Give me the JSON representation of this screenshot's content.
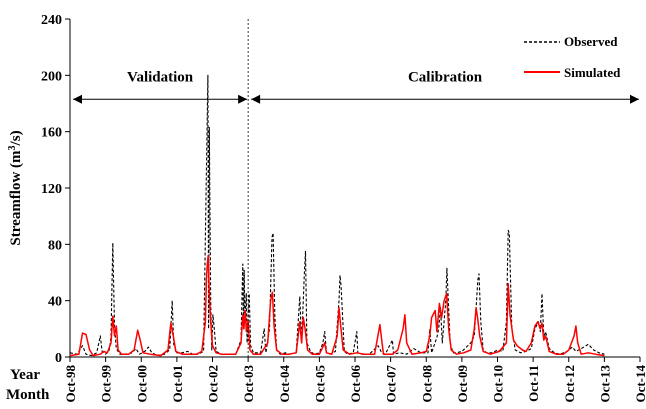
{
  "chart_data": {
    "type": "line",
    "ylabel_main": "Streamflow (m",
    "ylabel_sup": "3",
    "ylabel_tail": "/s)",
    "x_row_labels": [
      "Year",
      "Month"
    ],
    "y_ticks": [
      0,
      40,
      80,
      120,
      160,
      200,
      240
    ],
    "ylim": [
      0,
      240
    ],
    "x_ticks": [
      "Oct-98",
      "Oct-99",
      "Oct-00",
      "Oct-01",
      "Oct-02",
      "Oct-03",
      "Oct-04",
      "Oct-05",
      "Oct-06",
      "Oct-07",
      "Oct-08",
      "Oct-09",
      "Oct-10",
      "Oct-11",
      "Oct-12",
      "Oct-13",
      "Oct-14"
    ],
    "xlim": [
      1998.75,
      2014.75
    ],
    "split_x": 2003.75,
    "legend_position": "top-right",
    "annotations": [
      {
        "text": "Validation",
        "from": 1998.75,
        "to": 2003.75,
        "y": 183
      },
      {
        "text": "Calibration",
        "from": 2003.75,
        "to": 2014.75,
        "y": 183
      }
    ],
    "series": [
      {
        "name": "Observed",
        "color": "#000000",
        "dash": "3,2",
        "points": [
          [
            1998.75,
            3
          ],
          [
            1998.95,
            2
          ],
          [
            1999.1,
            8
          ],
          [
            1999.2,
            2
          ],
          [
            1999.35,
            1
          ],
          [
            1999.5,
            3
          ],
          [
            1999.6,
            15
          ],
          [
            1999.65,
            4
          ],
          [
            1999.75,
            2
          ],
          [
            1999.85,
            5
          ],
          [
            1999.9,
            14
          ],
          [
            1999.95,
            81
          ],
          [
            2000.0,
            22
          ],
          [
            2000.05,
            6
          ],
          [
            2000.15,
            2
          ],
          [
            2000.3,
            2
          ],
          [
            2000.5,
            3
          ],
          [
            2000.6,
            6
          ],
          [
            2000.7,
            2
          ],
          [
            2000.85,
            4
          ],
          [
            2000.95,
            7
          ],
          [
            2001.05,
            3
          ],
          [
            2001.2,
            1
          ],
          [
            2001.4,
            2
          ],
          [
            2001.55,
            5
          ],
          [
            2001.62,
            40
          ],
          [
            2001.66,
            9
          ],
          [
            2001.75,
            3
          ],
          [
            2001.9,
            3
          ],
          [
            2002.05,
            4
          ],
          [
            2002.2,
            2
          ],
          [
            2002.35,
            2
          ],
          [
            2002.5,
            4
          ],
          [
            2002.62,
            200
          ],
          [
            2002.64,
            20
          ],
          [
            2002.66,
            163
          ],
          [
            2002.7,
            40
          ],
          [
            2002.73,
            5
          ],
          [
            2002.76,
            30
          ],
          [
            2002.8,
            20
          ],
          [
            2002.85,
            4
          ],
          [
            2003.0,
            2
          ],
          [
            2003.2,
            2
          ],
          [
            2003.4,
            2
          ],
          [
            2003.55,
            12
          ],
          [
            2003.6,
            66
          ],
          [
            2003.62,
            20
          ],
          [
            2003.64,
            62
          ],
          [
            2003.66,
            25
          ],
          [
            2003.7,
            45
          ],
          [
            2003.72,
            10
          ],
          [
            2003.78,
            45
          ],
          [
            2003.82,
            8
          ],
          [
            2003.9,
            3
          ],
          [
            2004.1,
            3
          ],
          [
            2004.2,
            20
          ],
          [
            2004.25,
            3
          ],
          [
            2004.35,
            20
          ],
          [
            2004.42,
            85
          ],
          [
            2004.45,
            88
          ],
          [
            2004.5,
            30
          ],
          [
            2004.55,
            5
          ],
          [
            2004.65,
            2
          ],
          [
            2004.8,
            3
          ],
          [
            2004.9,
            2
          ],
          [
            2005.1,
            3
          ],
          [
            2005.2,
            43
          ],
          [
            2005.25,
            10
          ],
          [
            2005.33,
            60
          ],
          [
            2005.36,
            75
          ],
          [
            2005.4,
            10
          ],
          [
            2005.5,
            4
          ],
          [
            2005.6,
            2
          ],
          [
            2005.75,
            3
          ],
          [
            2005.85,
            10
          ],
          [
            2005.9,
            18
          ],
          [
            2005.95,
            3
          ],
          [
            2006.05,
            2
          ],
          [
            2006.2,
            4
          ],
          [
            2006.3,
            40
          ],
          [
            2006.33,
            58
          ],
          [
            2006.36,
            50
          ],
          [
            2006.45,
            4
          ],
          [
            2006.55,
            2
          ],
          [
            2006.7,
            3
          ],
          [
            2006.8,
            18
          ],
          [
            2006.83,
            3
          ],
          [
            2006.95,
            2
          ],
          [
            2007.15,
            2
          ],
          [
            2007.4,
            8
          ],
          [
            2007.5,
            3
          ],
          [
            2007.6,
            2
          ],
          [
            2007.8,
            12
          ],
          [
            2007.83,
            2
          ],
          [
            2008.0,
            3
          ],
          [
            2008.2,
            2
          ],
          [
            2008.4,
            6
          ],
          [
            2008.6,
            3
          ],
          [
            2008.8,
            3
          ],
          [
            2008.85,
            20
          ],
          [
            2008.9,
            3
          ],
          [
            2009.05,
            14
          ],
          [
            2009.1,
            20
          ],
          [
            2009.15,
            35
          ],
          [
            2009.2,
            10
          ],
          [
            2009.3,
            40
          ],
          [
            2009.33,
            63
          ],
          [
            2009.36,
            45
          ],
          [
            2009.42,
            10
          ],
          [
            2009.5,
            3
          ],
          [
            2009.6,
            3
          ],
          [
            2009.75,
            4
          ],
          [
            2010.0,
            10
          ],
          [
            2010.1,
            15
          ],
          [
            2010.2,
            55
          ],
          [
            2010.23,
            59
          ],
          [
            2010.28,
            25
          ],
          [
            2010.35,
            5
          ],
          [
            2010.45,
            3
          ],
          [
            2010.6,
            3
          ],
          [
            2010.75,
            5
          ],
          [
            2010.9,
            4
          ],
          [
            2011.0,
            25
          ],
          [
            2011.05,
            90
          ],
          [
            2011.08,
            88
          ],
          [
            2011.15,
            20
          ],
          [
            2011.25,
            5
          ],
          [
            2011.4,
            3
          ],
          [
            2011.55,
            4
          ],
          [
            2011.7,
            6
          ],
          [
            2011.8,
            20
          ],
          [
            2011.9,
            25
          ],
          [
            2011.95,
            18
          ],
          [
            2012.0,
            45
          ],
          [
            2012.05,
            14
          ],
          [
            2012.1,
            18
          ],
          [
            2012.2,
            6
          ],
          [
            2012.35,
            3
          ],
          [
            2012.5,
            2
          ],
          [
            2012.7,
            4
          ],
          [
            2012.85,
            7
          ],
          [
            2012.95,
            4
          ],
          [
            2013.1,
            6
          ],
          [
            2013.3,
            9
          ],
          [
            2013.45,
            5
          ],
          [
            2013.6,
            3
          ],
          [
            2013.75,
            2
          ]
        ]
      },
      {
        "name": "Simulated",
        "color": "#ff0000",
        "dash": "",
        "points": [
          [
            1998.75,
            1
          ],
          [
            1999.0,
            2
          ],
          [
            1999.1,
            17
          ],
          [
            1999.2,
            16
          ],
          [
            1999.3,
            5
          ],
          [
            1999.4,
            1
          ],
          [
            1999.6,
            2
          ],
          [
            1999.7,
            4
          ],
          [
            1999.8,
            3
          ],
          [
            1999.9,
            10
          ],
          [
            1999.95,
            29
          ],
          [
            2000.0,
            15
          ],
          [
            2000.05,
            22
          ],
          [
            2000.1,
            5
          ],
          [
            2000.2,
            2
          ],
          [
            2000.4,
            2
          ],
          [
            2000.55,
            5
          ],
          [
            2000.65,
            19
          ],
          [
            2000.72,
            12
          ],
          [
            2000.8,
            3
          ],
          [
            2001.0,
            2
          ],
          [
            2001.3,
            1
          ],
          [
            2001.5,
            5
          ],
          [
            2001.58,
            24
          ],
          [
            2001.65,
            15
          ],
          [
            2001.72,
            4
          ],
          [
            2001.9,
            2
          ],
          [
            2002.1,
            2
          ],
          [
            2002.3,
            2
          ],
          [
            2002.45,
            4
          ],
          [
            2002.55,
            25
          ],
          [
            2002.58,
            55
          ],
          [
            2002.6,
            65
          ],
          [
            2002.63,
            72
          ],
          [
            2002.66,
            45
          ],
          [
            2002.7,
            25
          ],
          [
            2002.75,
            8
          ],
          [
            2002.85,
            3
          ],
          [
            2003.0,
            2
          ],
          [
            2003.2,
            2
          ],
          [
            2003.4,
            2
          ],
          [
            2003.55,
            10
          ],
          [
            2003.6,
            30
          ],
          [
            2003.63,
            20
          ],
          [
            2003.67,
            33
          ],
          [
            2003.7,
            18
          ],
          [
            2003.75,
            26
          ],
          [
            2003.8,
            5
          ],
          [
            2003.9,
            2
          ],
          [
            2004.1,
            2
          ],
          [
            2004.3,
            10
          ],
          [
            2004.38,
            40
          ],
          [
            2004.43,
            46
          ],
          [
            2004.48,
            22
          ],
          [
            2004.55,
            5
          ],
          [
            2004.7,
            2
          ],
          [
            2004.9,
            2
          ],
          [
            2005.1,
            3
          ],
          [
            2005.2,
            25
          ],
          [
            2005.25,
            10
          ],
          [
            2005.3,
            28
          ],
          [
            2005.35,
            20
          ],
          [
            2005.42,
            5
          ],
          [
            2005.55,
            2
          ],
          [
            2005.75,
            2
          ],
          [
            2005.9,
            10
          ],
          [
            2005.95,
            3
          ],
          [
            2006.1,
            2
          ],
          [
            2006.25,
            15
          ],
          [
            2006.3,
            35
          ],
          [
            2006.35,
            22
          ],
          [
            2006.42,
            5
          ],
          [
            2006.6,
            2
          ],
          [
            2006.8,
            3
          ],
          [
            2007.0,
            2
          ],
          [
            2007.3,
            2
          ],
          [
            2007.45,
            23
          ],
          [
            2007.5,
            12
          ],
          [
            2007.55,
            2
          ],
          [
            2007.8,
            2
          ],
          [
            2007.95,
            5
          ],
          [
            2008.1,
            20
          ],
          [
            2008.15,
            30
          ],
          [
            2008.2,
            10
          ],
          [
            2008.35,
            2
          ],
          [
            2008.6,
            3
          ],
          [
            2008.75,
            4
          ],
          [
            2008.85,
            15
          ],
          [
            2008.9,
            28
          ],
          [
            2009.0,
            33
          ],
          [
            2009.05,
            18
          ],
          [
            2009.12,
            38
          ],
          [
            2009.18,
            28
          ],
          [
            2009.25,
            40
          ],
          [
            2009.32,
            45
          ],
          [
            2009.38,
            20
          ],
          [
            2009.45,
            5
          ],
          [
            2009.6,
            2
          ],
          [
            2009.8,
            3
          ],
          [
            2010.0,
            5
          ],
          [
            2010.1,
            20
          ],
          [
            2010.15,
            35
          ],
          [
            2010.2,
            26
          ],
          [
            2010.25,
            15
          ],
          [
            2010.35,
            4
          ],
          [
            2010.55,
            2
          ],
          [
            2010.8,
            4
          ],
          [
            2011.0,
            10
          ],
          [
            2011.05,
            52
          ],
          [
            2011.1,
            30
          ],
          [
            2011.2,
            12
          ],
          [
            2011.3,
            8
          ],
          [
            2011.45,
            5
          ],
          [
            2011.55,
            4
          ],
          [
            2011.7,
            10
          ],
          [
            2011.8,
            22
          ],
          [
            2011.88,
            25
          ],
          [
            2011.95,
            20
          ],
          [
            2012.0,
            24
          ],
          [
            2012.05,
            12
          ],
          [
            2012.1,
            15
          ],
          [
            2012.2,
            4
          ],
          [
            2012.4,
            2
          ],
          [
            2012.6,
            2
          ],
          [
            2012.75,
            5
          ],
          [
            2012.9,
            15
          ],
          [
            2012.95,
            22
          ],
          [
            2013.0,
            10
          ],
          [
            2013.1,
            2
          ],
          [
            2013.3,
            3
          ],
          [
            2013.5,
            2
          ],
          [
            2013.75,
            1
          ]
        ]
      }
    ]
  }
}
